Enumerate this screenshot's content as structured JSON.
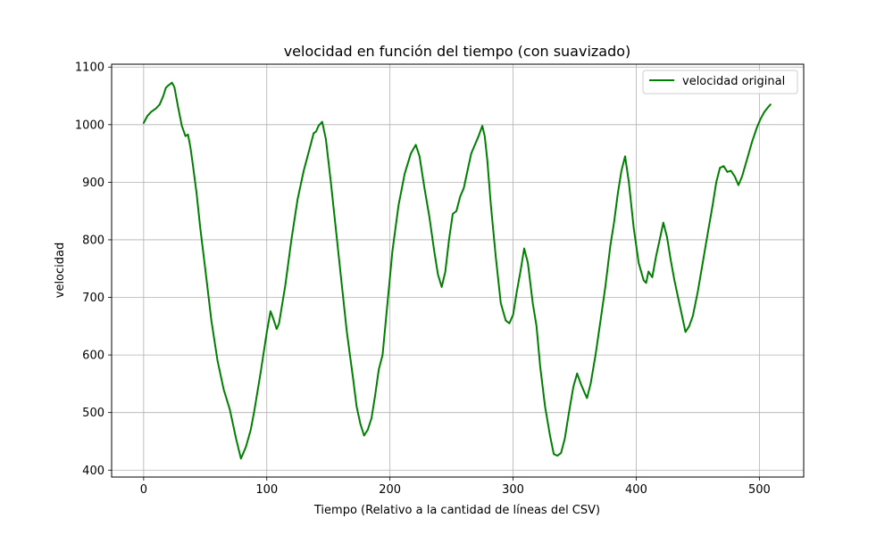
{
  "chart_data": {
    "type": "line",
    "title": "velocidad en función del tiempo (con suavizado)",
    "xlabel": "Tiempo (Relativo a la cantidad de líneas del CSV)",
    "ylabel": "velocidad",
    "xlim": [
      -26,
      536
    ],
    "ylim": [
      388,
      1105
    ],
    "xticks": [
      0,
      100,
      200,
      300,
      400,
      500
    ],
    "yticks": [
      400,
      500,
      600,
      700,
      800,
      900,
      1000,
      1100
    ],
    "grid": true,
    "legend_position": "top-right",
    "series": [
      {
        "name": "velocidad original",
        "color": "#008000",
        "points": [
          [
            0,
            1003
          ],
          [
            3,
            1015
          ],
          [
            6,
            1022
          ],
          [
            10,
            1028
          ],
          [
            13,
            1035
          ],
          [
            16,
            1050
          ],
          [
            18,
            1064
          ],
          [
            20,
            1068
          ],
          [
            23,
            1073
          ],
          [
            25,
            1065
          ],
          [
            28,
            1030
          ],
          [
            31,
            998
          ],
          [
            34,
            980
          ],
          [
            36,
            983
          ],
          [
            38,
            960
          ],
          [
            40,
            930
          ],
          [
            43,
            880
          ],
          [
            46,
            820
          ],
          [
            50,
            750
          ],
          [
            55,
            660
          ],
          [
            60,
            590
          ],
          [
            65,
            540
          ],
          [
            70,
            505
          ],
          [
            75,
            455
          ],
          [
            79,
            420
          ],
          [
            83,
            440
          ],
          [
            87,
            470
          ],
          [
            90,
            505
          ],
          [
            95,
            570
          ],
          [
            100,
            640
          ],
          [
            103,
            676
          ],
          [
            105,
            665
          ],
          [
            108,
            645
          ],
          [
            110,
            655
          ],
          [
            115,
            720
          ],
          [
            120,
            800
          ],
          [
            125,
            870
          ],
          [
            130,
            920
          ],
          [
            135,
            960
          ],
          [
            138,
            985
          ],
          [
            140,
            988
          ],
          [
            142,
            998
          ],
          [
            145,
            1005
          ],
          [
            148,
            975
          ],
          [
            152,
            900
          ],
          [
            156,
            820
          ],
          [
            160,
            740
          ],
          [
            165,
            640
          ],
          [
            170,
            560
          ],
          [
            173,
            510
          ],
          [
            176,
            480
          ],
          [
            179,
            460
          ],
          [
            182,
            470
          ],
          [
            185,
            490
          ],
          [
            188,
            530
          ],
          [
            191,
            575
          ],
          [
            194,
            600
          ],
          [
            198,
            690
          ],
          [
            202,
            780
          ],
          [
            207,
            860
          ],
          [
            212,
            915
          ],
          [
            217,
            950
          ],
          [
            221,
            965
          ],
          [
            224,
            945
          ],
          [
            228,
            890
          ],
          [
            232,
            840
          ],
          [
            236,
            780
          ],
          [
            239,
            740
          ],
          [
            242,
            718
          ],
          [
            245,
            745
          ],
          [
            248,
            800
          ],
          [
            251,
            845
          ],
          [
            254,
            850
          ],
          [
            257,
            875
          ],
          [
            260,
            890
          ],
          [
            263,
            920
          ],
          [
            266,
            950
          ],
          [
            269,
            965
          ],
          [
            272,
            980
          ],
          [
            275,
            998
          ],
          [
            277,
            980
          ],
          [
            279,
            940
          ],
          [
            282,
            860
          ],
          [
            286,
            770
          ],
          [
            290,
            690
          ],
          [
            294,
            660
          ],
          [
            297,
            655
          ],
          [
            300,
            670
          ],
          [
            303,
            710
          ],
          [
            306,
            745
          ],
          [
            309,
            785
          ],
          [
            312,
            760
          ],
          [
            316,
            690
          ],
          [
            319,
            650
          ],
          [
            322,
            580
          ],
          [
            326,
            510
          ],
          [
            330,
            460
          ],
          [
            333,
            428
          ],
          [
            336,
            425
          ],
          [
            339,
            430
          ],
          [
            342,
            455
          ],
          [
            345,
            495
          ],
          [
            349,
            545
          ],
          [
            352,
            568
          ],
          [
            355,
            550
          ],
          [
            358,
            535
          ],
          [
            360,
            525
          ],
          [
            363,
            550
          ],
          [
            367,
            600
          ],
          [
            371,
            660
          ],
          [
            375,
            720
          ],
          [
            379,
            790
          ],
          [
            382,
            830
          ],
          [
            385,
            880
          ],
          [
            388,
            920
          ],
          [
            391,
            945
          ],
          [
            394,
            900
          ],
          [
            398,
            820
          ],
          [
            402,
            760
          ],
          [
            406,
            730
          ],
          [
            408,
            725
          ],
          [
            410,
            745
          ],
          [
            413,
            735
          ],
          [
            416,
            770
          ],
          [
            419,
            800
          ],
          [
            422,
            830
          ],
          [
            425,
            805
          ],
          [
            428,
            765
          ],
          [
            431,
            730
          ],
          [
            434,
            700
          ],
          [
            437,
            670
          ],
          [
            440,
            640
          ],
          [
            443,
            650
          ],
          [
            446,
            668
          ],
          [
            450,
            710
          ],
          [
            454,
            760
          ],
          [
            458,
            810
          ],
          [
            462,
            860
          ],
          [
            465,
            900
          ],
          [
            468,
            925
          ],
          [
            471,
            928
          ],
          [
            474,
            918
          ],
          [
            477,
            920
          ],
          [
            480,
            910
          ],
          [
            483,
            895
          ],
          [
            486,
            910
          ],
          [
            490,
            940
          ],
          [
            494,
            970
          ],
          [
            498,
            995
          ],
          [
            501,
            1010
          ],
          [
            504,
            1022
          ],
          [
            507,
            1030
          ],
          [
            509,
            1035
          ]
        ]
      }
    ]
  }
}
